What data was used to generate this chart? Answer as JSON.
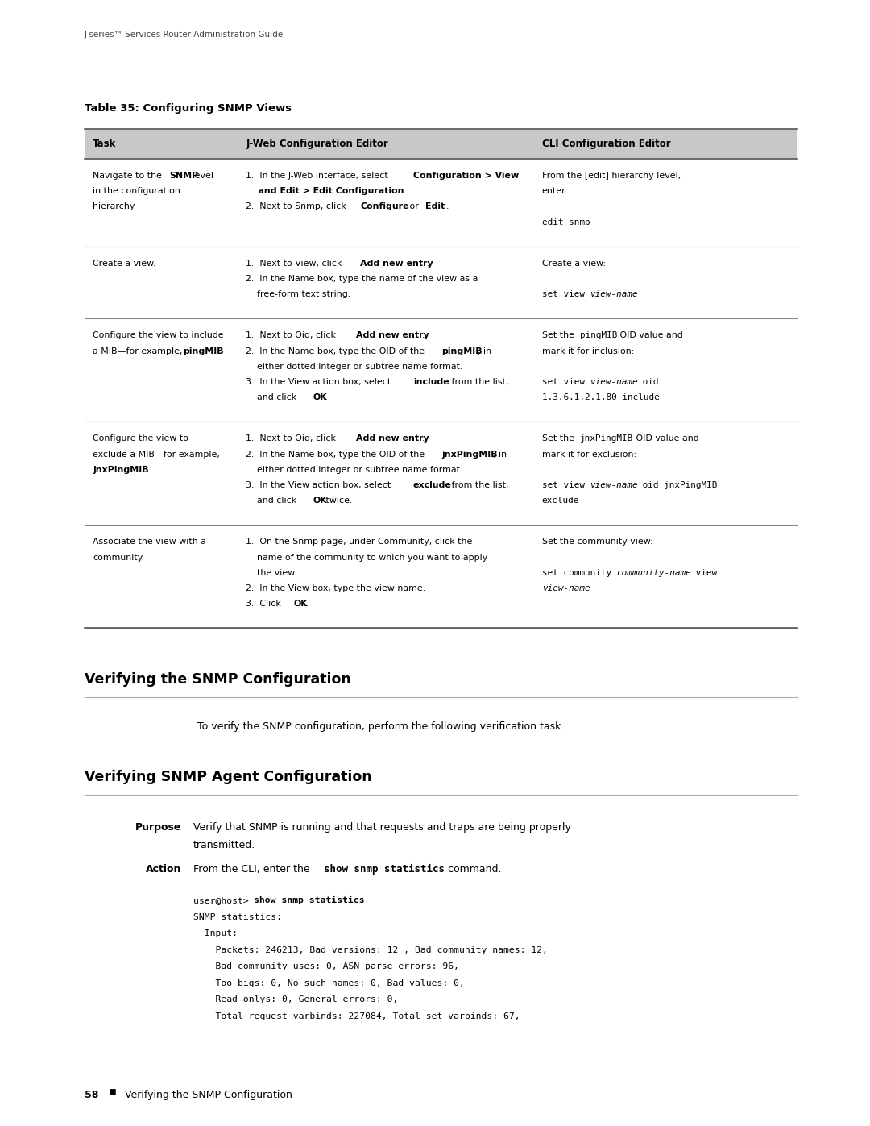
{
  "page_width": 10.8,
  "page_height": 13.97,
  "bg_color": "#ffffff",
  "header_text": "J-series™ Services Router Administration Guide",
  "footer_page": "58",
  "footer_text": "Verifying the SNMP Configuration",
  "table_title": "Table 35: Configuring SNMP Views",
  "col_headers": [
    "Task",
    "J-Web Configuration Editor",
    "CLI Configuration Editor"
  ],
  "col_header_bg": "#c8c8c8",
  "table_rows": [
    {
      "task_plain": "Navigate to the ",
      "task_bold": "SNMP",
      "task_rest": " level\nin the configuration\nhierarchy.",
      "task_lines": 3,
      "jweb_lines": [
        {
          "parts": [
            {
              "t": "1.  In the J-Web interface, select ",
              "b": false
            },
            {
              "t": "Configuration > View",
              "b": true
            }
          ],
          "cont": false
        },
        {
          "parts": [
            {
              "t": "    and Edit > Edit Configuration",
              "b": true
            },
            {
              "t": ".",
              "b": false
            }
          ],
          "cont": true
        },
        {
          "parts": [
            {
              "t": "2.  Next to Snmp, click ",
              "b": false
            },
            {
              "t": "Configure",
              "b": true
            },
            {
              "t": " or ",
              "b": false
            },
            {
              "t": "Edit",
              "b": true
            },
            {
              "t": ".",
              "b": false
            }
          ],
          "cont": false
        }
      ],
      "cli_lines": [
        {
          "parts": [
            {
              "t": "From the [edit] hierarchy level,",
              "b": false
            }
          ]
        },
        {
          "parts": [
            {
              "t": "enter",
              "b": false
            }
          ]
        },
        {
          "parts": [
            {
              "t": "",
              "b": false
            }
          ]
        },
        {
          "parts": [
            {
              "t": "edit snmp",
              "b": false,
              "mono": true
            }
          ]
        }
      ]
    },
    {
      "task_plain": "Create a view.",
      "task_bold": "",
      "task_rest": "",
      "task_lines": 1,
      "jweb_lines": [
        {
          "parts": [
            {
              "t": "1.  Next to View, click ",
              "b": false
            },
            {
              "t": "Add new entry",
              "b": true
            },
            {
              "t": ".",
              "b": false
            }
          ],
          "cont": false
        },
        {
          "parts": [
            {
              "t": "2.  In the Name box, type the name of the view as a",
              "b": false
            }
          ],
          "cont": false
        },
        {
          "parts": [
            {
              "t": "    free-form text string.",
              "b": false
            }
          ],
          "cont": false
        }
      ],
      "cli_lines": [
        {
          "parts": [
            {
              "t": "Create a view:",
              "b": false
            }
          ]
        },
        {
          "parts": [
            {
              "t": "",
              "b": false
            }
          ]
        },
        {
          "parts": [
            {
              "t": "set view ",
              "b": false,
              "mono": true
            },
            {
              "t": "view-name",
              "b": false,
              "mono": true,
              "italic": true
            }
          ]
        }
      ]
    },
    {
      "task_plain": "Configure the view to include\na MIB—for example, ",
      "task_bold": "pingMIB",
      "task_rest": ".",
      "task_lines": 2,
      "jweb_lines": [
        {
          "parts": [
            {
              "t": "1.  Next to Oid, click ",
              "b": false
            },
            {
              "t": "Add new entry",
              "b": true
            },
            {
              "t": ".",
              "b": false
            }
          ],
          "cont": false
        },
        {
          "parts": [
            {
              "t": "2.  In the Name box, type the OID of the ",
              "b": false
            },
            {
              "t": "pingMIB",
              "b": true
            },
            {
              "t": ", in",
              "b": false
            }
          ],
          "cont": false
        },
        {
          "parts": [
            {
              "t": "    either dotted integer or subtree name format.",
              "b": false
            }
          ],
          "cont": false
        },
        {
          "parts": [
            {
              "t": "3.  In the View action box, select ",
              "b": false
            },
            {
              "t": "include",
              "b": true
            },
            {
              "t": " from the list,",
              "b": false
            }
          ],
          "cont": false
        },
        {
          "parts": [
            {
              "t": "    and click ",
              "b": false
            },
            {
              "t": "OK",
              "b": true
            },
            {
              "t": ".",
              "b": false
            }
          ],
          "cont": false
        }
      ],
      "cli_lines": [
        {
          "parts": [
            {
              "t": "Set the ",
              "b": false
            },
            {
              "t": "pingMIB",
              "b": false,
              "mono": true
            },
            {
              "t": " OID value and",
              "b": false
            }
          ]
        },
        {
          "parts": [
            {
              "t": "mark it for inclusion:",
              "b": false
            }
          ]
        },
        {
          "parts": [
            {
              "t": "",
              "b": false
            }
          ]
        },
        {
          "parts": [
            {
              "t": "set view ",
              "b": false,
              "mono": true
            },
            {
              "t": "view-name",
              "b": false,
              "mono": true,
              "italic": true
            },
            {
              "t": " oid",
              "b": false,
              "mono": true
            }
          ]
        },
        {
          "parts": [
            {
              "t": "1.3.6.1.2.1.80 include",
              "b": false,
              "mono": true
            }
          ]
        }
      ]
    },
    {
      "task_plain": "Configure the view to\nexclude a MIB—for example,\n",
      "task_bold": "jnxPingMIB",
      "task_rest": ".",
      "task_lines": 3,
      "jweb_lines": [
        {
          "parts": [
            {
              "t": "1.  Next to Oid, click ",
              "b": false
            },
            {
              "t": "Add new entry",
              "b": true
            },
            {
              "t": ".",
              "b": false
            }
          ],
          "cont": false
        },
        {
          "parts": [
            {
              "t": "2.  In the Name box, type the OID of the ",
              "b": false
            },
            {
              "t": "jnxPingMIB",
              "b": true
            },
            {
              "t": ", in",
              "b": false
            }
          ],
          "cont": false
        },
        {
          "parts": [
            {
              "t": "    either dotted integer or subtree name format.",
              "b": false
            }
          ],
          "cont": false
        },
        {
          "parts": [
            {
              "t": "3.  In the View action box, select ",
              "b": false
            },
            {
              "t": "exclude",
              "b": true
            },
            {
              "t": " from the list,",
              "b": false
            }
          ],
          "cont": false
        },
        {
          "parts": [
            {
              "t": "    and click ",
              "b": false
            },
            {
              "t": "OK",
              "b": true
            },
            {
              "t": " twice.",
              "b": false
            }
          ],
          "cont": false
        }
      ],
      "cli_lines": [
        {
          "parts": [
            {
              "t": "Set the ",
              "b": false
            },
            {
              "t": "jnxPingMIB",
              "b": false,
              "mono": true
            },
            {
              "t": " OID value and",
              "b": false
            }
          ]
        },
        {
          "parts": [
            {
              "t": "mark it for exclusion:",
              "b": false
            }
          ]
        },
        {
          "parts": [
            {
              "t": "",
              "b": false
            }
          ]
        },
        {
          "parts": [
            {
              "t": "set view ",
              "b": false,
              "mono": true
            },
            {
              "t": "view-name",
              "b": false,
              "mono": true,
              "italic": true
            },
            {
              "t": " oid jnxPingMIB",
              "b": false,
              "mono": true
            }
          ]
        },
        {
          "parts": [
            {
              "t": "exclude",
              "b": false,
              "mono": true
            }
          ]
        }
      ]
    },
    {
      "task_plain": "Associate the view with a\ncommunity.",
      "task_bold": "",
      "task_rest": "",
      "task_lines": 2,
      "jweb_lines": [
        {
          "parts": [
            {
              "t": "1.  On the Snmp page, under Community, click the",
              "b": false
            }
          ],
          "cont": false
        },
        {
          "parts": [
            {
              "t": "    name of the community to which you want to apply",
              "b": false
            }
          ],
          "cont": false
        },
        {
          "parts": [
            {
              "t": "    the view.",
              "b": false
            }
          ],
          "cont": false
        },
        {
          "parts": [
            {
              "t": "2.  In the View box, type the view name.",
              "b": false
            }
          ],
          "cont": false
        },
        {
          "parts": [
            {
              "t": "3.  Click ",
              "b": false
            },
            {
              "t": "OK",
              "b": true
            },
            {
              "t": ".",
              "b": false
            }
          ],
          "cont": false
        }
      ],
      "cli_lines": [
        {
          "parts": [
            {
              "t": "Set the community view:",
              "b": false
            }
          ]
        },
        {
          "parts": [
            {
              "t": "",
              "b": false
            }
          ]
        },
        {
          "parts": [
            {
              "t": "set community ",
              "b": false,
              "mono": true
            },
            {
              "t": "community-name",
              "b": false,
              "mono": true,
              "italic": true
            },
            {
              "t": " view",
              "b": false,
              "mono": true
            }
          ]
        },
        {
          "parts": [
            {
              "t": "view-name",
              "b": false,
              "mono": true,
              "italic": true
            }
          ]
        }
      ]
    }
  ],
  "section1_title": "Verifying the SNMP Configuration",
  "section1_body": "To verify the SNMP configuration, perform the following verification task.",
  "section2_title": "Verifying SNMP Agent Configuration",
  "purpose_label": "Purpose",
  "purpose_text": "Verify that SNMP is running and that requests and traps are being properly\ntransmitted.",
  "action_label": "Action",
  "code_lines": [
    {
      "text": "user@host> ",
      "bold": false,
      "mono": true
    },
    {
      "text": "show snmp statistics",
      "bold": true,
      "mono": true,
      "eol": true
    },
    {
      "text": "SNMP statistics:",
      "bold": false,
      "mono": true,
      "eol": true
    },
    {
      "text": "  Input:",
      "bold": false,
      "mono": true,
      "eol": true
    },
    {
      "text": "    Packets: 246213, Bad versions: 12 , Bad community names: 12,",
      "bold": false,
      "mono": true,
      "eol": true
    },
    {
      "text": "    Bad community uses: 0, ASN parse errors: 96,",
      "bold": false,
      "mono": true,
      "eol": true
    },
    {
      "text": "    Too bigs: 0, No such names: 0, Bad values: 0,",
      "bold": false,
      "mono": true,
      "eol": true
    },
    {
      "text": "    Read onlys: 0, General errors: 0,",
      "bold": false,
      "mono": true,
      "eol": true
    },
    {
      "text": "    Total request varbinds: 227084, Total set varbinds: 67,",
      "bold": false,
      "mono": true,
      "eol": true
    }
  ]
}
